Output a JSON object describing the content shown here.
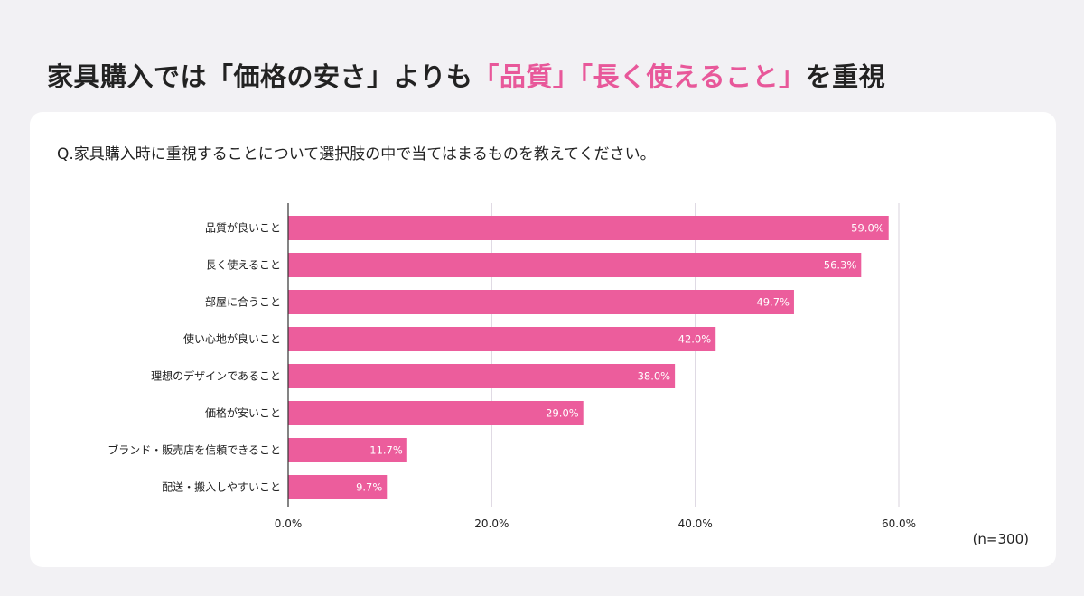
{
  "headline": {
    "part1": "家具購入では「価格の安さ」よりも",
    "highlight1": "「品質」",
    "highlight2": "「長く使えること」",
    "part2": "を重視"
  },
  "question": "Q.家具購入時に重視することについて選択肢の中で当てはまるものを教えてください。",
  "sample_size": "(n=300)",
  "colors": {
    "bar": "#ec5d9c",
    "highlight": "#e8589a",
    "grid": "#d9d3de",
    "axis": "#333333"
  },
  "chart_data": {
    "type": "bar",
    "orientation": "horizontal",
    "categories": [
      "品質が良いこと",
      "長く使えること",
      "部屋に合うこと",
      "使い心地が良いこと",
      "理想のデザインであること",
      "価格が安いこと",
      "ブランド・販売店を信頼できること",
      "配送・搬入しやすいこと"
    ],
    "values": [
      59.0,
      56.3,
      49.7,
      42.0,
      38.0,
      29.0,
      11.7,
      9.7
    ],
    "value_labels": [
      "59.0%",
      "56.3%",
      "49.7%",
      "42.0%",
      "38.0%",
      "29.0%",
      "11.7%",
      "9.7%"
    ],
    "xlim": [
      0,
      60
    ],
    "x_ticks": [
      0,
      20,
      40,
      60
    ],
    "x_tick_labels": [
      "0.0%",
      "20.0%",
      "40.0%",
      "60.0%"
    ],
    "grid": true,
    "legend": false
  }
}
